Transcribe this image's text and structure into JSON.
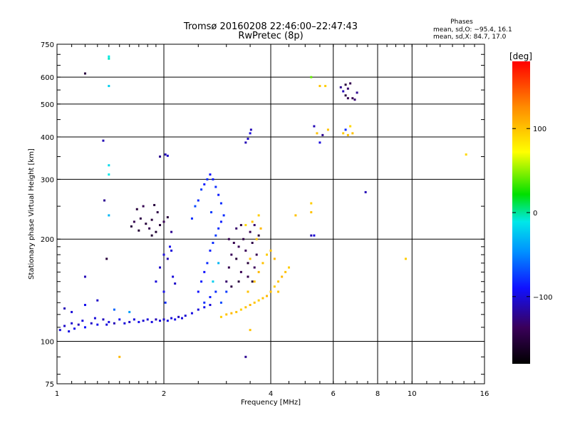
{
  "chart_data": {
    "type": "scatter",
    "title": "Tromsø 20160208 22:46:00–22:47:43",
    "subtitle": "RwPretec (8p)",
    "xlabel": "Frequency [MHz]",
    "ylabel": "Stationary phase Virtual Height [km]",
    "x_scale": "log",
    "y_scale": "log",
    "xlim": [
      1,
      16
    ],
    "ylim": [
      75,
      750
    ],
    "x_ticks": [
      1,
      2,
      4,
      6,
      8,
      10,
      16
    ],
    "x_tick_labels": [
      "1",
      "2",
      "4",
      "6",
      "8",
      "10",
      "16"
    ],
    "y_ticks": [
      75,
      100,
      200,
      300,
      400,
      500,
      600,
      750
    ],
    "y_tick_labels": [
      "75",
      "100",
      "200",
      "300",
      "400",
      "500",
      "600",
      "750"
    ],
    "grid": true,
    "stats": {
      "heading": "Phases",
      "line1": "mean, sd,O: −95.4, 16.1",
      "line2": "mean, sd,X:  84.7, 17.0"
    },
    "colorbar": {
      "label": "[deg]",
      "ticks": [
        100,
        0,
        -100
      ],
      "tick_labels": [
        "100",
        "0",
        "−100"
      ],
      "range": [
        -180,
        180
      ]
    },
    "series": [
      {
        "points": [
          [
            1.02,
            108,
            -100
          ],
          [
            1.05,
            111,
            -105
          ],
          [
            1.08,
            107,
            -98
          ],
          [
            1.1,
            113,
            -102
          ],
          [
            1.12,
            109,
            -95
          ],
          [
            1.15,
            112,
            -110
          ],
          [
            1.18,
            115,
            -100
          ],
          [
            1.2,
            110,
            -90
          ],
          [
            1.25,
            113,
            -105
          ],
          [
            1.28,
            117,
            -100
          ],
          [
            1.3,
            112,
            -95
          ],
          [
            1.35,
            116,
            -108
          ],
          [
            1.38,
            112,
            -100
          ],
          [
            1.4,
            114,
            -98
          ],
          [
            1.45,
            113,
            -110
          ],
          [
            1.5,
            116,
            -95
          ],
          [
            1.55,
            113,
            -100
          ],
          [
            1.6,
            114,
            -105
          ],
          [
            1.65,
            116,
            -100
          ],
          [
            1.7,
            114,
            -95
          ],
          [
            1.75,
            115,
            -102
          ],
          [
            1.8,
            116,
            -100
          ],
          [
            1.85,
            114,
            -98
          ],
          [
            1.9,
            116,
            -110
          ],
          [
            1.95,
            115,
            -100
          ],
          [
            2.0,
            116,
            -105
          ],
          [
            2.05,
            115,
            -98
          ],
          [
            2.1,
            117,
            -100
          ],
          [
            2.15,
            116,
            -95
          ],
          [
            2.2,
            118,
            -108
          ],
          [
            2.25,
            117,
            -100
          ],
          [
            2.3,
            119,
            -102
          ],
          [
            2.4,
            121,
            -98
          ],
          [
            2.5,
            124,
            -100
          ],
          [
            2.6,
            126,
            -95
          ],
          [
            2.7,
            128,
            -100
          ],
          [
            1.05,
            125,
            -110
          ],
          [
            1.1,
            122,
            -100
          ],
          [
            1.2,
            128,
            -95
          ],
          [
            1.3,
            132,
            -105
          ],
          [
            1.45,
            124,
            -60
          ],
          [
            1.6,
            122,
            -40
          ],
          [
            1.2,
            155,
            -110
          ],
          [
            1.38,
            175,
            -150
          ],
          [
            1.36,
            260,
            -120
          ],
          [
            1.35,
            390,
            -110
          ],
          [
            1.2,
            615,
            -150
          ],
          [
            1.4,
            690,
            -10
          ],
          [
            1.4,
            680,
            -5
          ],
          [
            1.4,
            565,
            -20
          ],
          [
            1.4,
            330,
            -15
          ],
          [
            1.4,
            310,
            -10
          ],
          [
            1.4,
            235,
            -30
          ],
          [
            1.62,
            218,
            -150
          ],
          [
            1.65,
            225,
            -140
          ],
          [
            1.7,
            212,
            -155
          ],
          [
            1.72,
            230,
            -145
          ],
          [
            1.78,
            222,
            -150
          ],
          [
            1.82,
            215,
            -140
          ],
          [
            1.85,
            228,
            -150
          ],
          [
            1.9,
            210,
            -155
          ],
          [
            1.92,
            240,
            -145
          ],
          [
            1.95,
            220,
            -150
          ],
          [
            2.0,
            225,
            -140
          ],
          [
            2.05,
            232,
            -150
          ],
          [
            1.68,
            245,
            -150
          ],
          [
            1.75,
            250,
            -140
          ],
          [
            1.85,
            205,
            -155
          ],
          [
            1.88,
            252,
            -150
          ],
          [
            2.1,
            210,
            -120
          ],
          [
            1.95,
            350,
            -120
          ],
          [
            2.02,
            355,
            -110
          ],
          [
            2.05,
            352,
            -105
          ],
          [
            1.9,
            150,
            -100
          ],
          [
            1.95,
            165,
            -105
          ],
          [
            2.0,
            140,
            -95
          ],
          [
            2.05,
            175,
            -110
          ],
          [
            2.1,
            185,
            -100
          ],
          [
            2.02,
            130,
            -80
          ],
          [
            2.0,
            180,
            -100
          ],
          [
            2.08,
            190,
            -95
          ],
          [
            2.12,
            155,
            -100
          ],
          [
            2.15,
            148,
            -105
          ],
          [
            2.4,
            230,
            -80
          ],
          [
            2.45,
            250,
            -70
          ],
          [
            2.5,
            260,
            -80
          ],
          [
            2.55,
            280,
            -75
          ],
          [
            2.6,
            290,
            -85
          ],
          [
            2.65,
            300,
            -80
          ],
          [
            2.7,
            310,
            -90
          ],
          [
            2.75,
            300,
            -85
          ],
          [
            2.8,
            285,
            -80
          ],
          [
            2.85,
            270,
            -85
          ],
          [
            2.9,
            255,
            -80
          ],
          [
            2.72,
            240,
            -75
          ],
          [
            2.5,
            140,
            -90
          ],
          [
            2.55,
            150,
            -85
          ],
          [
            2.6,
            160,
            -90
          ],
          [
            2.65,
            170,
            -80
          ],
          [
            2.7,
            185,
            -85
          ],
          [
            2.75,
            195,
            -80
          ],
          [
            2.8,
            205,
            -75
          ],
          [
            2.85,
            215,
            -80
          ],
          [
            2.9,
            225,
            -85
          ],
          [
            2.95,
            235,
            -80
          ],
          [
            2.6,
            130,
            -80
          ],
          [
            2.7,
            135,
            -85
          ],
          [
            2.8,
            140,
            -80
          ],
          [
            2.9,
            130,
            -70
          ],
          [
            3.0,
            140,
            -75
          ],
          [
            2.75,
            150,
            -20
          ],
          [
            2.85,
            170,
            -30
          ],
          [
            3.0,
            150,
            -130
          ],
          [
            3.05,
            165,
            -140
          ],
          [
            3.1,
            180,
            -135
          ],
          [
            3.15,
            195,
            -140
          ],
          [
            3.2,
            175,
            -150
          ],
          [
            3.25,
            190,
            -135
          ],
          [
            3.3,
            160,
            -140
          ],
          [
            3.35,
            200,
            -145
          ],
          [
            3.4,
            185,
            -135
          ],
          [
            3.45,
            170,
            -150
          ],
          [
            3.5,
            210,
            -140
          ],
          [
            3.55,
            195,
            -145
          ],
          [
            3.6,
            165,
            -135
          ],
          [
            3.65,
            180,
            -140
          ],
          [
            3.7,
            205,
            -150
          ],
          [
            3.05,
            200,
            -140
          ],
          [
            3.2,
            215,
            -130
          ],
          [
            3.3,
            220,
            -145
          ],
          [
            3.1,
            145,
            -145
          ],
          [
            3.25,
            150,
            -150
          ],
          [
            3.45,
            155,
            -140
          ],
          [
            3.55,
            150,
            -150
          ],
          [
            3.6,
            220,
            -130
          ],
          [
            3.4,
            385,
            -110
          ],
          [
            3.45,
            395,
            -105
          ],
          [
            3.5,
            410,
            -100
          ],
          [
            3.52,
            420,
            -110
          ],
          [
            3.4,
            90,
            -120
          ],
          [
            2.9,
            118,
            95
          ],
          [
            3.0,
            120,
            100
          ],
          [
            3.1,
            121,
            105
          ],
          [
            3.2,
            122,
            100
          ],
          [
            3.3,
            124,
            95
          ],
          [
            3.4,
            126,
            100
          ],
          [
            3.5,
            128,
            105
          ],
          [
            3.6,
            130,
            100
          ],
          [
            3.7,
            132,
            95
          ],
          [
            3.8,
            134,
            100
          ],
          [
            3.9,
            136,
            105
          ],
          [
            4.0,
            140,
            100
          ],
          [
            4.1,
            145,
            95
          ],
          [
            4.2,
            150,
            100
          ],
          [
            4.3,
            155,
            105
          ],
          [
            4.4,
            160,
            100
          ],
          [
            4.5,
            165,
            95
          ],
          [
            4.2,
            140,
            100
          ],
          [
            3.6,
            150,
            100
          ],
          [
            3.7,
            160,
            105
          ],
          [
            3.8,
            170,
            100
          ],
          [
            3.9,
            180,
            95
          ],
          [
            4.0,
            185,
            100
          ],
          [
            4.1,
            175,
            105
          ],
          [
            3.65,
            200,
            100
          ],
          [
            3.75,
            215,
            105
          ],
          [
            3.55,
            225,
            100
          ],
          [
            3.7,
            235,
            95
          ],
          [
            3.5,
            175,
            100
          ],
          [
            3.45,
            140,
            100
          ],
          [
            3.4,
            220,
            90
          ],
          [
            4.7,
            235,
            100
          ],
          [
            5.2,
            255,
            95
          ],
          [
            5.2,
            240,
            100
          ],
          [
            5.2,
            205,
            -110
          ],
          [
            5.3,
            205,
            -100
          ],
          [
            5.2,
            600,
            40
          ],
          [
            5.5,
            565,
            100
          ],
          [
            5.7,
            565,
            95
          ],
          [
            5.4,
            410,
            100
          ],
          [
            5.6,
            405,
            -120
          ],
          [
            5.3,
            430,
            -110
          ],
          [
            5.5,
            385,
            -100
          ],
          [
            5.8,
            420,
            100
          ],
          [
            6.3,
            560,
            -120
          ],
          [
            6.4,
            545,
            -110
          ],
          [
            6.5,
            530,
            -150
          ],
          [
            6.6,
            555,
            -130
          ],
          [
            6.7,
            575,
            -140
          ],
          [
            6.8,
            520,
            -140
          ],
          [
            6.9,
            515,
            -130
          ],
          [
            7.0,
            540,
            -120
          ],
          [
            6.5,
            570,
            -150
          ],
          [
            6.6,
            520,
            -140
          ],
          [
            6.4,
            410,
            95
          ],
          [
            6.6,
            405,
            100
          ],
          [
            6.7,
            430,
            90
          ],
          [
            6.8,
            410,
            100
          ],
          [
            6.5,
            420,
            -80
          ],
          [
            7.4,
            275,
            -110
          ],
          [
            9.6,
            175,
            95
          ],
          [
            14.2,
            355,
            90
          ],
          [
            3.5,
            108,
            100
          ],
          [
            1.5,
            90,
            105
          ]
        ]
      }
    ]
  }
}
